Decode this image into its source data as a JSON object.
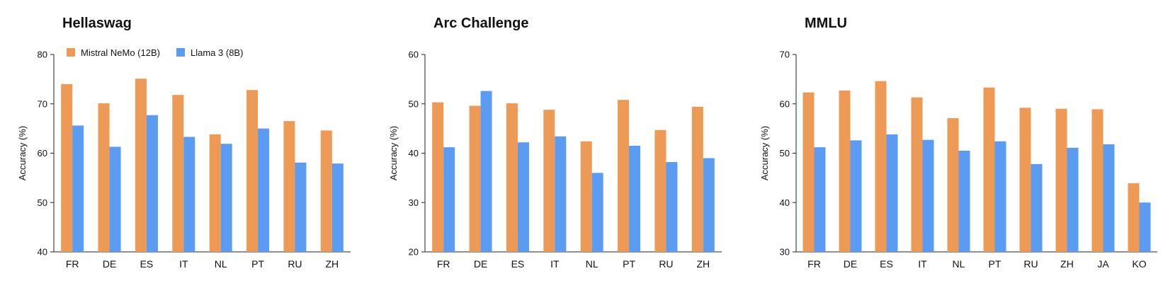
{
  "colors": {
    "series_a": "#EC9A56",
    "series_b": "#5B9CF2"
  },
  "legend": {
    "series_a": "Mistral NeMo (12B)",
    "series_b": "Llama 3 (8B)"
  },
  "chart_data": [
    {
      "type": "bar",
      "title": "Hellaswag",
      "ylabel": "Accuracy (%)",
      "ylim": [
        40,
        80
      ],
      "yticks": [
        40,
        50,
        60,
        70,
        80
      ],
      "categories": [
        "FR",
        "DE",
        "ES",
        "IT",
        "NL",
        "PT",
        "RU",
        "ZH"
      ],
      "series": [
        {
          "name": "Mistral NeMo (12B)",
          "values": [
            74.0,
            70.1,
            75.1,
            71.8,
            63.8,
            72.8,
            66.5,
            64.6
          ]
        },
        {
          "name": "Llama 3 (8B)",
          "values": [
            65.6,
            61.3,
            67.7,
            63.3,
            61.9,
            65.0,
            58.1,
            57.9
          ]
        }
      ],
      "legend": "top-left"
    },
    {
      "type": "bar",
      "title": "Arc Challenge",
      "ylabel": "Accuracy (%)",
      "ylim": [
        20,
        60
      ],
      "yticks": [
        20,
        30,
        40,
        50,
        60
      ],
      "categories": [
        "FR",
        "DE",
        "ES",
        "IT",
        "NL",
        "PT",
        "RU",
        "ZH"
      ],
      "series": [
        {
          "name": "Mistral NeMo (12B)",
          "values": [
            50.3,
            49.6,
            50.1,
            48.8,
            42.4,
            50.8,
            44.7,
            49.4
          ]
        },
        {
          "name": "Llama 3 (8B)",
          "values": [
            41.2,
            52.6,
            42.2,
            43.4,
            36.0,
            41.5,
            38.2,
            39.0
          ]
        }
      ]
    },
    {
      "type": "bar",
      "title": "MMLU",
      "ylabel": "Accuracy (%)",
      "ylim": [
        30,
        70
      ],
      "yticks": [
        30,
        40,
        50,
        60,
        70
      ],
      "categories": [
        "FR",
        "DE",
        "ES",
        "IT",
        "NL",
        "PT",
        "RU",
        "ZH",
        "JA",
        "KO"
      ],
      "series": [
        {
          "name": "Mistral NeMo (12B)",
          "values": [
            62.3,
            62.7,
            64.6,
            61.3,
            57.1,
            63.3,
            59.2,
            59.0,
            58.9,
            43.9
          ]
        },
        {
          "name": "Llama 3 (8B)",
          "values": [
            51.2,
            52.6,
            53.8,
            52.7,
            50.5,
            52.4,
            47.8,
            51.1,
            51.8,
            40.0
          ]
        }
      ]
    }
  ]
}
